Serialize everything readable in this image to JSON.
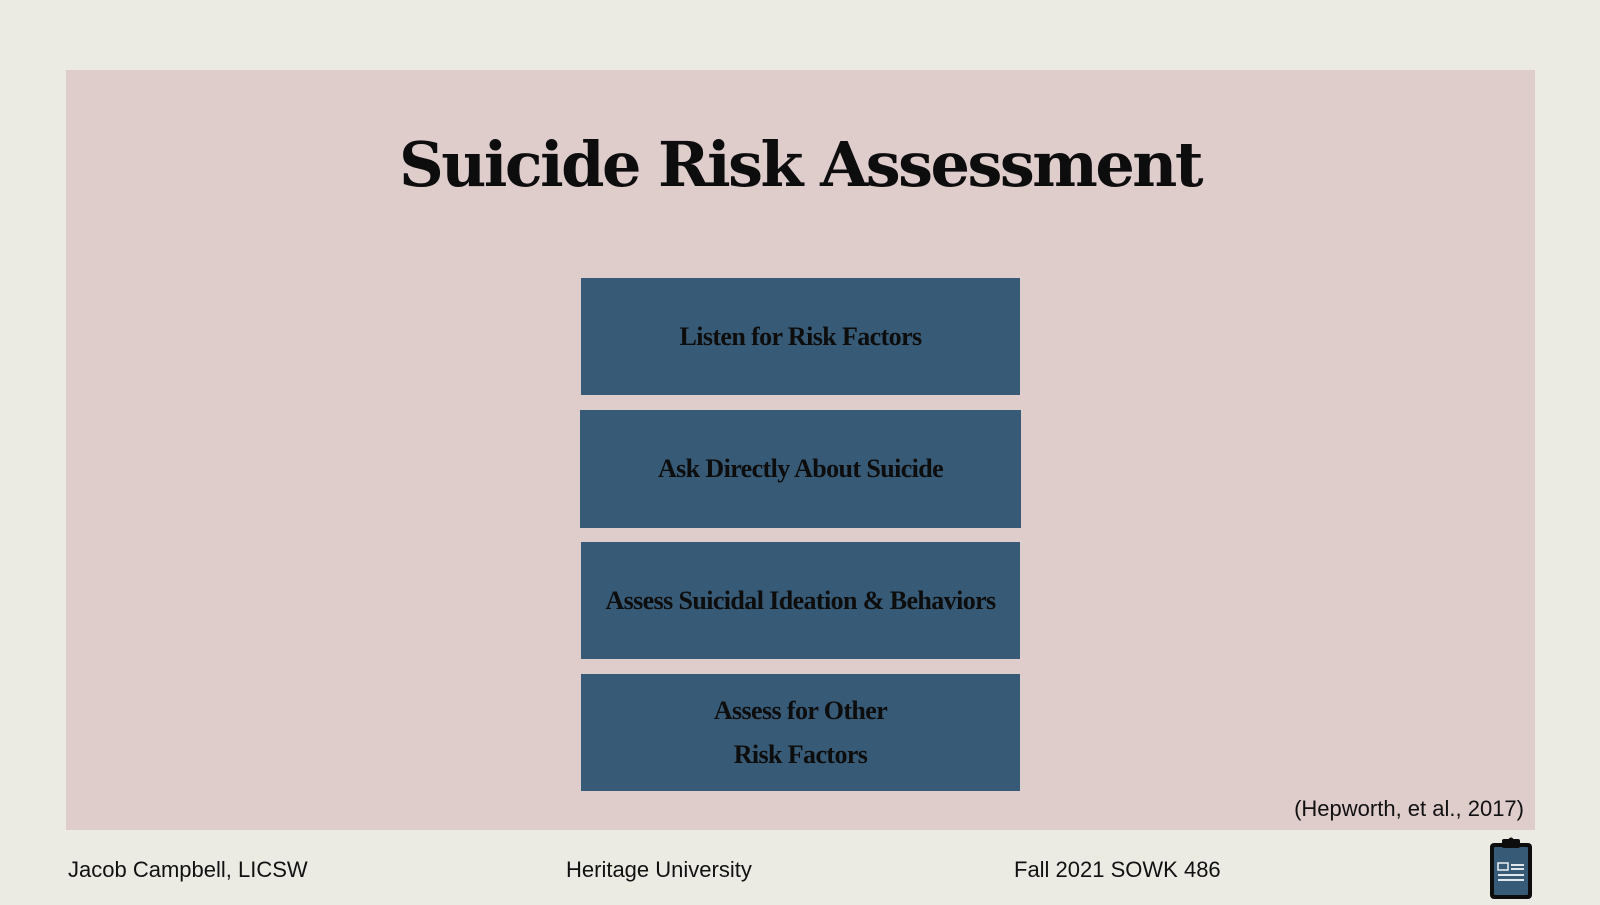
{
  "slide": {
    "title": "Suicide Risk Assessment",
    "steps": [
      {
        "lines": [
          "Listen for Risk Factors"
        ]
      },
      {
        "lines": [
          "Ask Directly About Suicide"
        ]
      },
      {
        "lines": [
          "Assess Suicidal Ideation & Behaviors"
        ]
      },
      {
        "lines": [
          "Assess for Other",
          "Risk Factors"
        ]
      }
    ],
    "citation": "(Hepworth, et al., 2017)"
  },
  "footer": {
    "author": "Jacob Campbell, LICSW",
    "school": "Heritage University",
    "course": "Fall 2021 SOWK 486",
    "icon": "clipboard-icon"
  },
  "colors": {
    "background": "#ebebe4",
    "panel": "#dfcdcc",
    "box": "#375a76",
    "text": "#0d0d0d"
  }
}
